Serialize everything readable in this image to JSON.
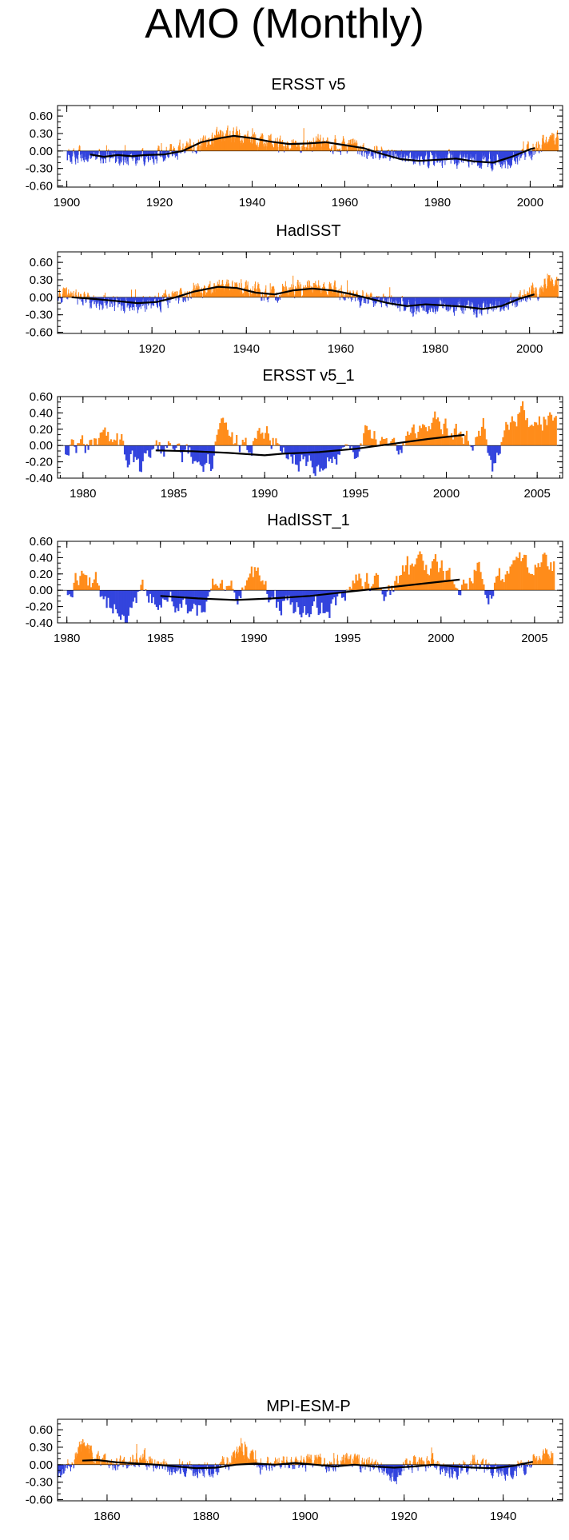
{
  "title": "AMO (Monthly)",
  "colors": {
    "positive": "#ff8c1a",
    "negative": "#3344dd",
    "trend": "#000000"
  },
  "chart_data": [
    {
      "type": "bar",
      "title": "ERSST v5",
      "xlim": [
        1898,
        2007
      ],
      "ylim": [
        -0.62,
        0.78
      ],
      "xticks": [
        1900,
        1920,
        1940,
        1960,
        1980,
        2000
      ],
      "yticks": [
        -0.6,
        -0.3,
        0.0,
        0.3,
        0.6
      ],
      "ytick_labels": [
        "-0.60",
        "-0.30",
        "0.00",
        "0.30",
        "0.60"
      ],
      "x_step": 0.0833,
      "series": [
        {
          "kind": "anomaly_bars",
          "anchors": [
            [
              1900,
              -0.05
            ],
            [
              1905,
              -0.1
            ],
            [
              1910,
              -0.12
            ],
            [
              1915,
              -0.1
            ],
            [
              1920,
              -0.06
            ],
            [
              1925,
              0.05
            ],
            [
              1930,
              0.18
            ],
            [
              1935,
              0.25
            ],
            [
              1940,
              0.2
            ],
            [
              1945,
              0.12
            ],
            [
              1950,
              0.1
            ],
            [
              1955,
              0.14
            ],
            [
              1960,
              0.1
            ],
            [
              1965,
              0.0
            ],
            [
              1970,
              -0.1
            ],
            [
              1975,
              -0.15
            ],
            [
              1980,
              -0.14
            ],
            [
              1985,
              -0.12
            ],
            [
              1990,
              -0.18
            ],
            [
              1995,
              -0.15
            ],
            [
              2000,
              0.0
            ],
            [
              2003,
              0.15
            ],
            [
              2006,
              0.25
            ]
          ]
        },
        {
          "kind": "trend_line",
          "points": [
            [
              1905,
              -0.06
            ],
            [
              1908,
              -0.1
            ],
            [
              1911,
              -0.07
            ],
            [
              1914,
              -0.09
            ],
            [
              1917,
              -0.07
            ],
            [
              1921,
              -0.06
            ],
            [
              1925,
              0.0
            ],
            [
              1929,
              0.15
            ],
            [
              1933,
              0.22
            ],
            [
              1936,
              0.26
            ],
            [
              1940,
              0.22
            ],
            [
              1944,
              0.16
            ],
            [
              1948,
              0.12
            ],
            [
              1952,
              0.13
            ],
            [
              1956,
              0.15
            ],
            [
              1960,
              0.1
            ],
            [
              1964,
              0.05
            ],
            [
              1968,
              -0.05
            ],
            [
              1972,
              -0.14
            ],
            [
              1976,
              -0.17
            ],
            [
              1980,
              -0.15
            ],
            [
              1984,
              -0.13
            ],
            [
              1988,
              -0.18
            ],
            [
              1992,
              -0.2
            ],
            [
              1996,
              -0.1
            ],
            [
              2000,
              0.03
            ],
            [
              2001,
              0.05
            ]
          ]
        }
      ]
    },
    {
      "type": "bar",
      "title": "HadISST",
      "xlim": [
        1900,
        2007
      ],
      "ylim": [
        -0.62,
        0.78
      ],
      "xticks": [
        1920,
        1940,
        1960,
        1980,
        2000
      ],
      "yticks": [
        -0.6,
        -0.3,
        0.0,
        0.3,
        0.6
      ],
      "ytick_labels": [
        "-0.60",
        "-0.30",
        "0.00",
        "0.30",
        "0.60"
      ],
      "x_step": 0.0833,
      "series": [
        {
          "kind": "anomaly_bars",
          "anchors": [
            [
              1900,
              0.05
            ],
            [
              1905,
              -0.05
            ],
            [
              1910,
              -0.1
            ],
            [
              1915,
              -0.12
            ],
            [
              1920,
              -0.1
            ],
            [
              1925,
              0.02
            ],
            [
              1930,
              0.12
            ],
            [
              1935,
              0.22
            ],
            [
              1940,
              0.15
            ],
            [
              1945,
              0.05
            ],
            [
              1950,
              0.15
            ],
            [
              1955,
              0.18
            ],
            [
              1960,
              0.08
            ],
            [
              1965,
              0.0
            ],
            [
              1970,
              -0.1
            ],
            [
              1975,
              -0.2
            ],
            [
              1980,
              -0.15
            ],
            [
              1985,
              -0.15
            ],
            [
              1990,
              -0.22
            ],
            [
              1995,
              -0.12
            ],
            [
              2000,
              0.05
            ],
            [
              2003,
              0.2
            ],
            [
              2006,
              0.25
            ]
          ]
        },
        {
          "kind": "trend_line",
          "points": [
            [
              1903,
              0.0
            ],
            [
              1908,
              -0.03
            ],
            [
              1912,
              -0.06
            ],
            [
              1917,
              -0.1
            ],
            [
              1921,
              -0.08
            ],
            [
              1925,
              0.0
            ],
            [
              1929,
              0.1
            ],
            [
              1934,
              0.18
            ],
            [
              1938,
              0.16
            ],
            [
              1942,
              0.08
            ],
            [
              1946,
              0.05
            ],
            [
              1950,
              0.12
            ],
            [
              1954,
              0.15
            ],
            [
              1958,
              0.12
            ],
            [
              1962,
              0.06
            ],
            [
              1966,
              -0.02
            ],
            [
              1970,
              -0.1
            ],
            [
              1974,
              -0.15
            ],
            [
              1978,
              -0.12
            ],
            [
              1982,
              -0.14
            ],
            [
              1986,
              -0.16
            ],
            [
              1990,
              -0.2
            ],
            [
              1994,
              -0.15
            ],
            [
              1998,
              -0.02
            ],
            [
              2001,
              0.05
            ]
          ]
        }
      ]
    },
    {
      "type": "bar",
      "title": "ERSST v5_1",
      "xlim": [
        1978.6,
        2006.4
      ],
      "ylim": [
        -0.4,
        0.6
      ],
      "xticks": [
        1980,
        1985,
        1990,
        1995,
        2000,
        2005
      ],
      "yticks": [
        -0.4,
        -0.2,
        0.0,
        0.2,
        0.4,
        0.6
      ],
      "ytick_labels": [
        "-0.40",
        "-0.20",
        "0.00",
        "0.20",
        "0.40",
        "0.60"
      ],
      "x_step": 0.0833,
      "series": [
        {
          "kind": "anomaly_bars",
          "anchors": [
            [
              1979,
              0.0
            ],
            [
              1980,
              -0.05
            ],
            [
              1981,
              0.15
            ],
            [
              1982,
              0.05
            ],
            [
              1983,
              -0.3
            ],
            [
              1984,
              -0.05
            ],
            [
              1985,
              -0.1
            ],
            [
              1986,
              -0.15
            ],
            [
              1987,
              -0.2
            ],
            [
              1987.5,
              0.2
            ],
            [
              1988,
              0.1
            ],
            [
              1989,
              -0.05
            ],
            [
              1990,
              0.15
            ],
            [
              1991,
              -0.1
            ],
            [
              1992,
              -0.2
            ],
            [
              1993,
              -0.25
            ],
            [
              1994,
              -0.2
            ],
            [
              1995,
              -0.05
            ],
            [
              1995.5,
              0.25
            ],
            [
              1996,
              0.15
            ],
            [
              1997,
              -0.05
            ],
            [
              1998,
              0.1
            ],
            [
              1999,
              0.3
            ],
            [
              2000,
              0.25
            ],
            [
              2001,
              0.05
            ],
            [
              2002,
              0.2
            ],
            [
              2002.5,
              -0.2
            ],
            [
              2003,
              0.1
            ],
            [
              2004,
              0.35
            ],
            [
              2005,
              0.3
            ],
            [
              2006,
              0.35
            ]
          ]
        },
        {
          "kind": "trend_line",
          "points": [
            [
              1984,
              -0.06
            ],
            [
              1986,
              -0.07
            ],
            [
              1988,
              -0.09
            ],
            [
              1990,
              -0.12
            ],
            [
              1991,
              -0.1
            ],
            [
              1993,
              -0.08
            ],
            [
              1995,
              -0.04
            ],
            [
              1997,
              0.02
            ],
            [
              1999,
              0.08
            ],
            [
              2001,
              0.13
            ]
          ]
        }
      ]
    },
    {
      "type": "bar",
      "title": "HadISST_1",
      "xlim": [
        1979.5,
        2006.5
      ],
      "ylim": [
        -0.4,
        0.6
      ],
      "xticks": [
        1980,
        1985,
        1990,
        1995,
        2000,
        2005
      ],
      "yticks": [
        -0.4,
        -0.2,
        0.0,
        0.2,
        0.4,
        0.6
      ],
      "ytick_labels": [
        "-0.40",
        "-0.20",
        "0.00",
        "0.20",
        "0.40",
        "0.60"
      ],
      "x_step": 0.0833,
      "series": [
        {
          "kind": "anomaly_bars",
          "anchors": [
            [
              1980,
              0.05
            ],
            [
              1980.5,
              0.15
            ],
            [
              1981.5,
              0.1
            ],
            [
              1982,
              -0.15
            ],
            [
              1983,
              -0.35
            ],
            [
              1984,
              -0.05
            ],
            [
              1985,
              -0.15
            ],
            [
              1986,
              -0.2
            ],
            [
              1987,
              -0.25
            ],
            [
              1988,
              0.15
            ],
            [
              1989,
              -0.05
            ],
            [
              1990,
              0.2
            ],
            [
              1991,
              -0.1
            ],
            [
              1992,
              -0.2
            ],
            [
              1993,
              -0.25
            ],
            [
              1994,
              -0.2
            ],
            [
              1995,
              0.05
            ],
            [
              1996,
              0.15
            ],
            [
              1997,
              -0.05
            ],
            [
              1998,
              0.2
            ],
            [
              1999,
              0.3
            ],
            [
              2000,
              0.3
            ],
            [
              2001,
              0.05
            ],
            [
              2002,
              0.25
            ],
            [
              2002.5,
              -0.2
            ],
            [
              2003,
              0.1
            ],
            [
              2004,
              0.35
            ],
            [
              2005,
              0.3
            ],
            [
              2006,
              0.35
            ]
          ]
        },
        {
          "kind": "trend_line",
          "points": [
            [
              1985,
              -0.07
            ],
            [
              1987,
              -0.1
            ],
            [
              1989,
              -0.12
            ],
            [
              1991,
              -0.1
            ],
            [
              1993,
              -0.07
            ],
            [
              1995,
              -0.02
            ],
            [
              1997,
              0.03
            ],
            [
              1999,
              0.08
            ],
            [
              2001,
              0.13
            ]
          ]
        }
      ]
    },
    {
      "type": "bar",
      "title": "MPI-ESM-P",
      "xlim": [
        1850,
        1952
      ],
      "ylim": [
        -0.62,
        0.78
      ],
      "xticks": [
        1860,
        1880,
        1900,
        1920,
        1940
      ],
      "yticks": [
        -0.6,
        -0.3,
        0.0,
        0.3,
        0.6
      ],
      "ytick_labels": [
        "-0.60",
        "-0.30",
        "0.00",
        "0.30",
        "0.60"
      ],
      "x_step": 0.0833,
      "series": [
        {
          "kind": "anomaly_bars",
          "anchors": [
            [
              1850,
              -0.1
            ],
            [
              1853,
              0.0
            ],
            [
              1855,
              0.35
            ],
            [
              1858,
              0.1
            ],
            [
              1862,
              0.0
            ],
            [
              1866,
              0.1
            ],
            [
              1870,
              0.0
            ],
            [
              1875,
              -0.05
            ],
            [
              1880,
              -0.15
            ],
            [
              1884,
              0.0
            ],
            [
              1887,
              0.3
            ],
            [
              1890,
              0.0
            ],
            [
              1895,
              0.05
            ],
            [
              1900,
              0.05
            ],
            [
              1905,
              0.02
            ],
            [
              1910,
              0.05
            ],
            [
              1915,
              -0.05
            ],
            [
              1918,
              -0.2
            ],
            [
              1922,
              0.05
            ],
            [
              1926,
              0.0
            ],
            [
              1930,
              -0.15
            ],
            [
              1934,
              0.05
            ],
            [
              1938,
              -0.1
            ],
            [
              1942,
              -0.15
            ],
            [
              1946,
              0.1
            ],
            [
              1950,
              0.25
            ]
          ]
        },
        {
          "kind": "trend_line",
          "points": [
            [
              1855,
              0.07
            ],
            [
              1858,
              0.08
            ],
            [
              1862,
              0.04
            ],
            [
              1866,
              0.02
            ],
            [
              1870,
              0.0
            ],
            [
              1874,
              -0.03
            ],
            [
              1878,
              -0.06
            ],
            [
              1882,
              -0.05
            ],
            [
              1886,
              0.0
            ],
            [
              1890,
              0.02
            ],
            [
              1894,
              0.0
            ],
            [
              1898,
              0.03
            ],
            [
              1902,
              0.0
            ],
            [
              1906,
              -0.03
            ],
            [
              1910,
              0.0
            ],
            [
              1914,
              -0.03
            ],
            [
              1918,
              -0.05
            ],
            [
              1922,
              -0.03
            ],
            [
              1926,
              0.0
            ],
            [
              1930,
              -0.03
            ],
            [
              1934,
              -0.05
            ],
            [
              1938,
              -0.06
            ],
            [
              1942,
              -0.02
            ],
            [
              1946,
              0.05
            ]
          ]
        }
      ]
    }
  ]
}
